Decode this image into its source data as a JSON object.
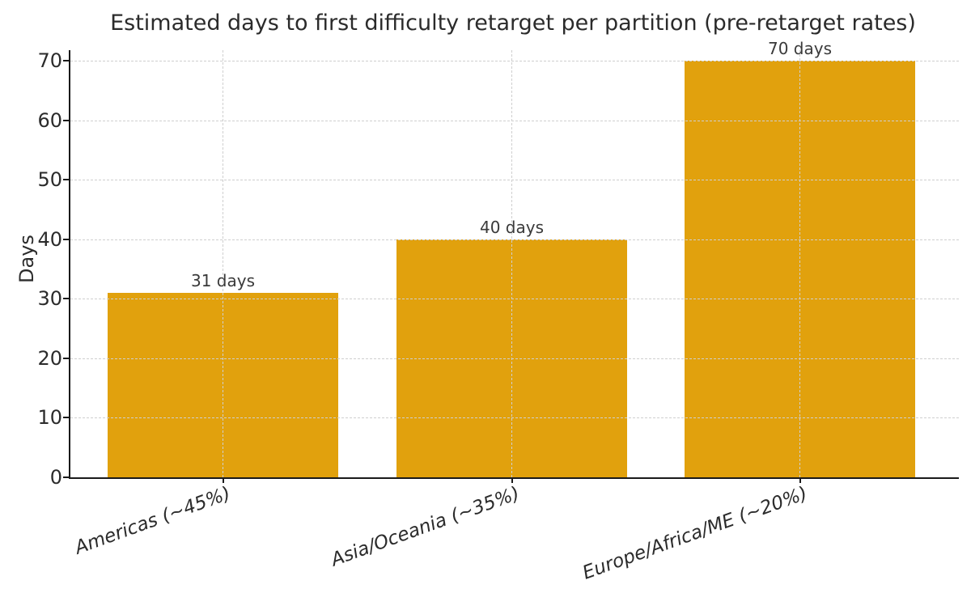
{
  "chart_data": {
    "type": "bar",
    "title": "Estimated days to first difficulty retarget per partition (pre-retarget rates)",
    "xlabel": "",
    "ylabel": "Days",
    "categories": [
      "Americas (~45%)",
      "Asia/Oceania (~35%)",
      "Europe/Africa/ME (~20%)"
    ],
    "values": [
      31,
      40,
      70
    ],
    "bar_labels": [
      "31 days",
      "40 days",
      "70 days"
    ],
    "yticks": [
      0,
      10,
      20,
      30,
      40,
      50,
      60,
      70
    ],
    "ylim": [
      0,
      71.8
    ],
    "grid": true,
    "grid_style": "dashed",
    "grid_over_bars": true,
    "legend": false,
    "bar_color": "#e1a10d",
    "grid_color": "#cfcfcf",
    "axis_color": "#1a1a1a",
    "text_color": "#2b2b2b"
  }
}
